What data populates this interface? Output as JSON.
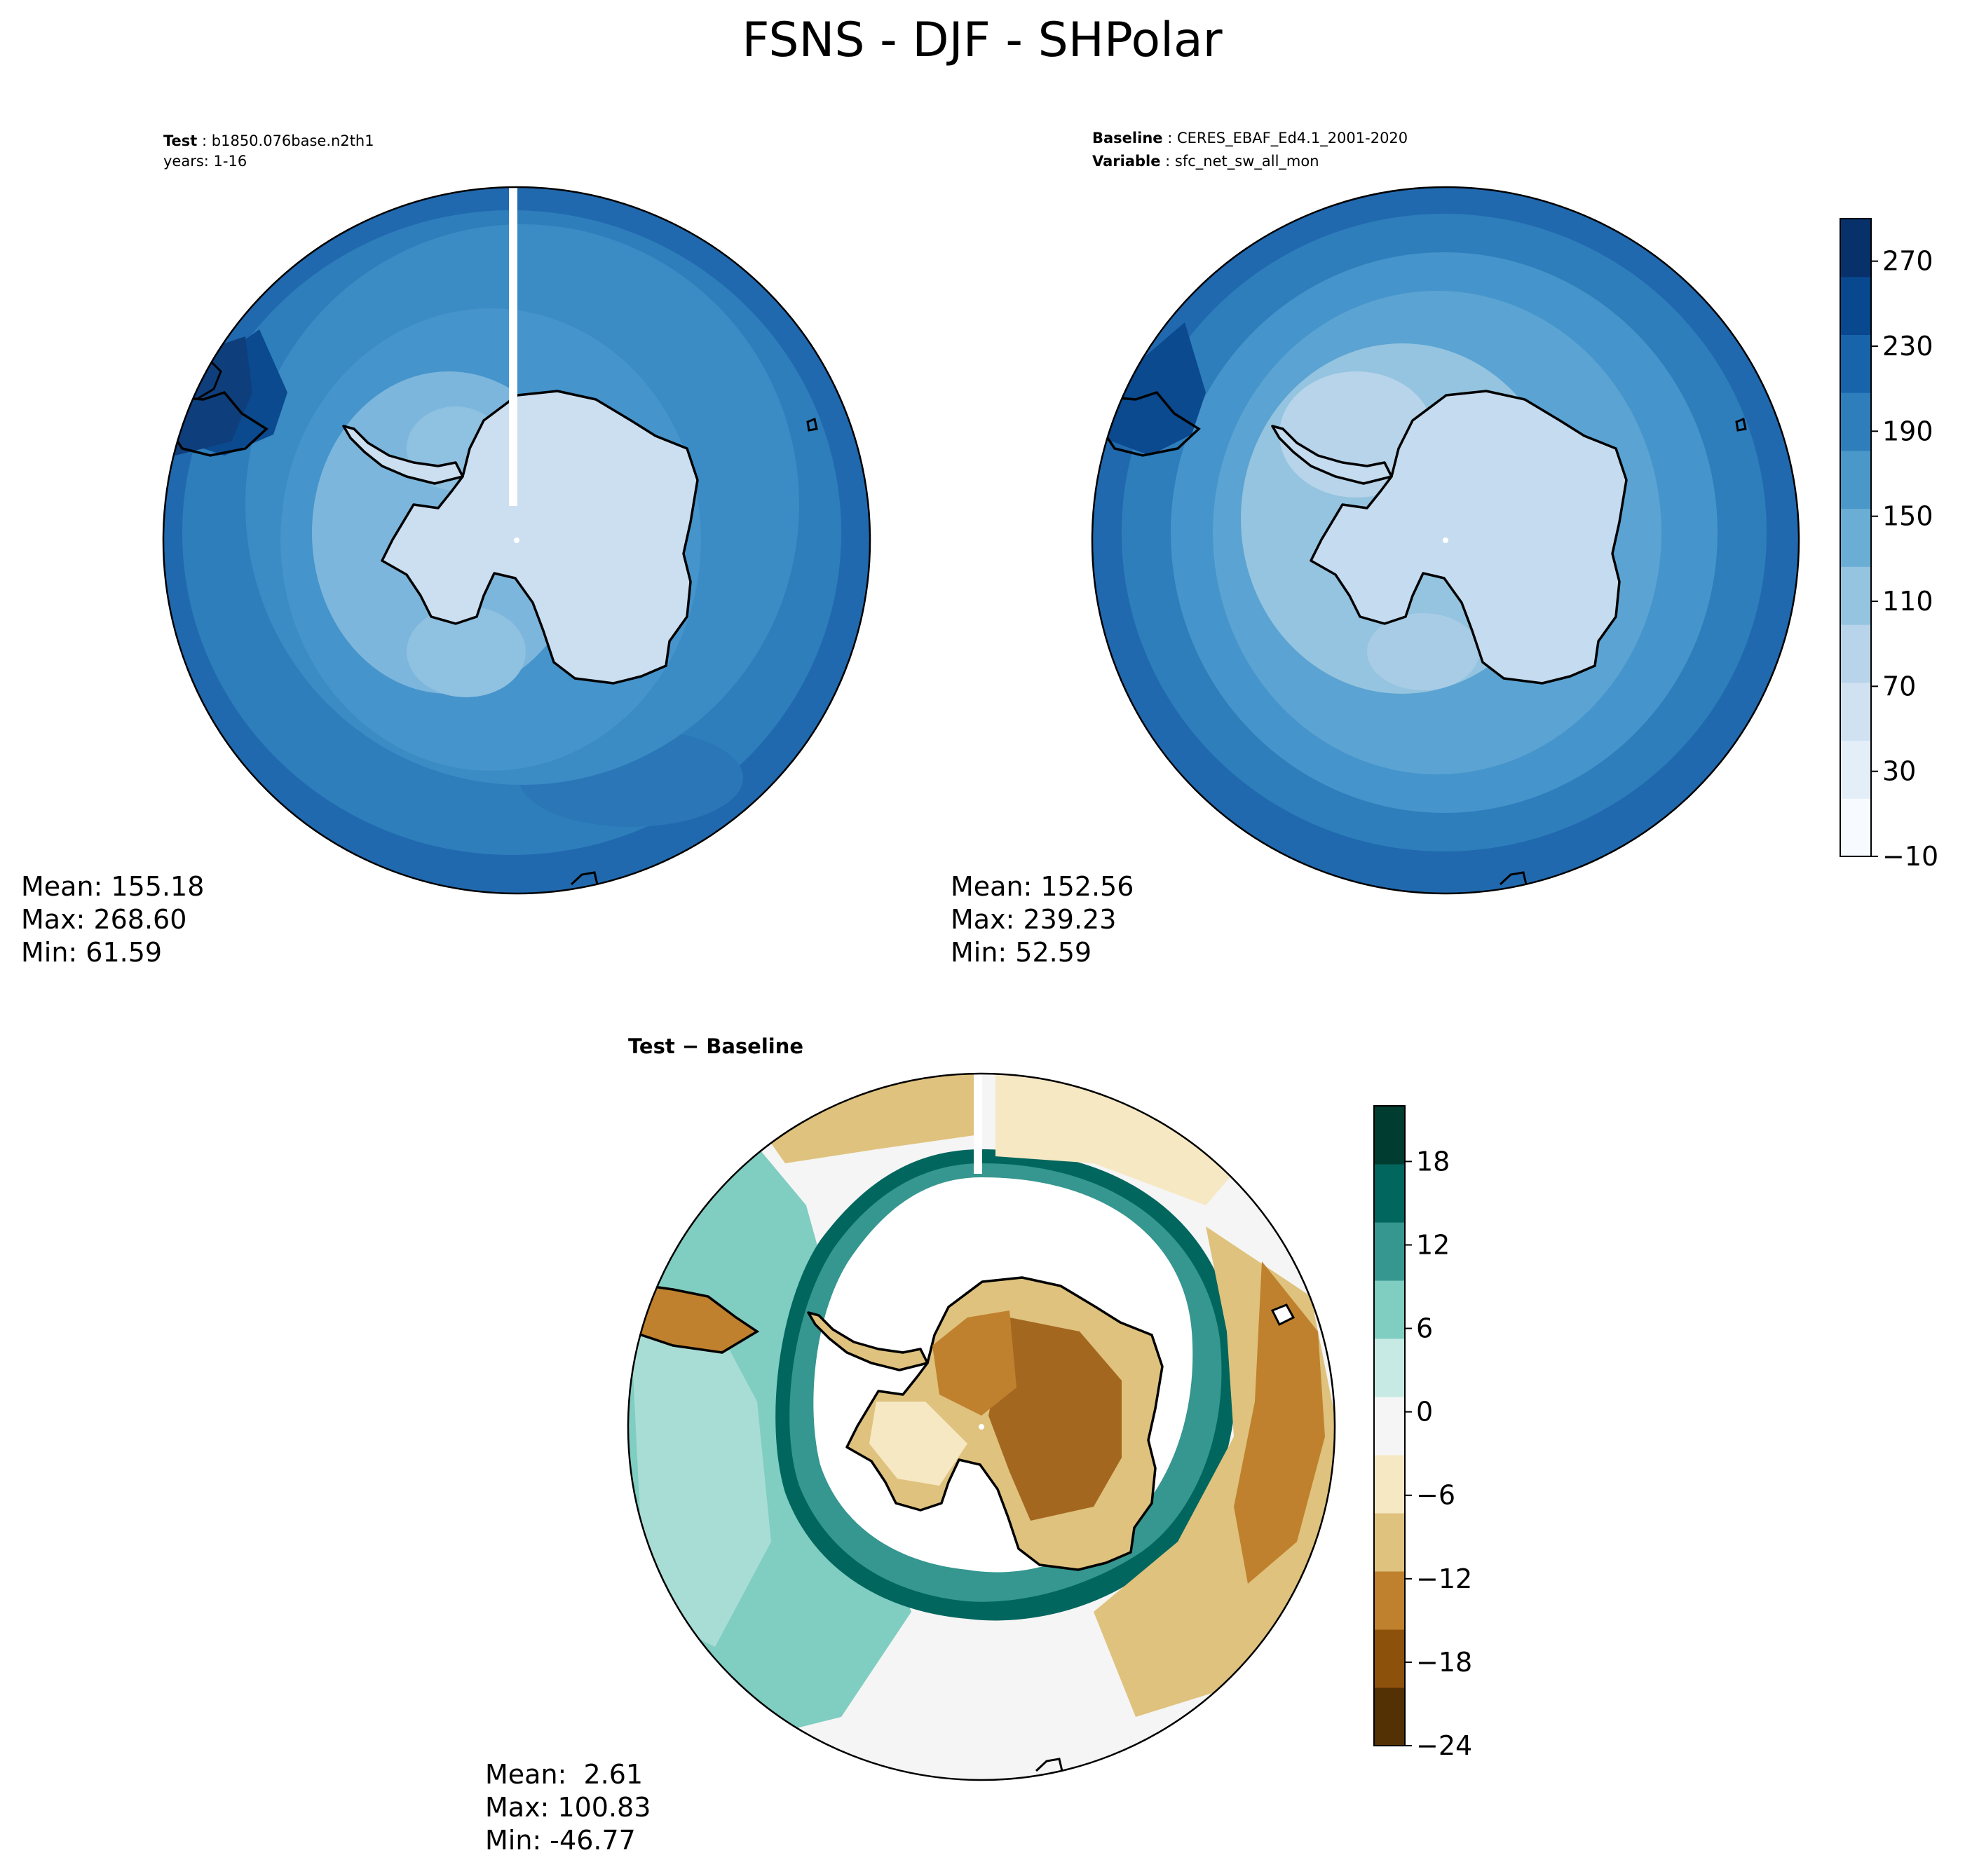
{
  "figure_title": "FSNS - DJF - SHPolar",
  "panels": [
    {
      "id": "test",
      "header": [
        {
          "key": "Test",
          "value": "b1850.076base.n2th1"
        },
        {
          "key": "",
          "value": "years: 1-16"
        }
      ],
      "stats": {
        "mean": "Mean: 155.18",
        "max": "Max: 268.60",
        "min": "Min: 61.59"
      },
      "approx_levels": {
        "ocean_outer": 215,
        "ocean_mid": 180,
        "ocean_inner": 150,
        "shelf_ring": 115,
        "continent": 70
      }
    },
    {
      "id": "baseline",
      "header": [
        {
          "key": "Baseline",
          "value": "CERES_EBAF_Ed4.1_2001-2020"
        },
        {
          "key": "Variable",
          "value": "sfc_net_sw_all_mon"
        }
      ],
      "stats": {
        "mean": "Mean: 152.56",
        "max": "Max: 239.23",
        "min": "Min: 52.59"
      },
      "approx_levels": {
        "ocean_outer": 215,
        "ocean_mid": 180,
        "ocean_inner": 150,
        "shelf_ring": 115,
        "continent": 70
      }
    },
    {
      "id": "diff",
      "header": [
        {
          "key": "Test − Baseline",
          "value": ""
        }
      ],
      "stats": {
        "mean": "Mean:  2.61",
        "max": "Max: 100.83",
        "min": "Min: -46.77"
      }
    }
  ],
  "colorbars": [
    {
      "id": "main",
      "ticks": [
        "270",
        "230",
        "190",
        "150",
        "110",
        "70",
        "30",
        "−10"
      ],
      "tick_values": [
        270,
        230,
        190,
        150,
        110,
        70,
        30,
        -10
      ],
      "range": [
        -10,
        290
      ],
      "colors": [
        "#f7fbff",
        "#e3eef9",
        "#d0e1f2",
        "#b7d4ea",
        "#94c4df",
        "#6aaed6",
        "#4a98c9",
        "#2e7ebc",
        "#1764ab",
        "#08488e",
        "#08306b"
      ]
    },
    {
      "id": "diff",
      "ticks": [
        "18",
        "12",
        "6",
        "0",
        "−6",
        "−12",
        "−18",
        "−24"
      ],
      "tick_values": [
        18,
        12,
        6,
        0,
        -6,
        -12,
        -18,
        -24
      ],
      "range": [
        -24,
        22
      ],
      "colors": [
        "#543005",
        "#8c510a",
        "#bf812d",
        "#dfc27d",
        "#f6e8c3",
        "#f5f5f5",
        "#c7eae5",
        "#80cdc1",
        "#35978f",
        "#01665e",
        "#003c30"
      ]
    }
  ]
}
